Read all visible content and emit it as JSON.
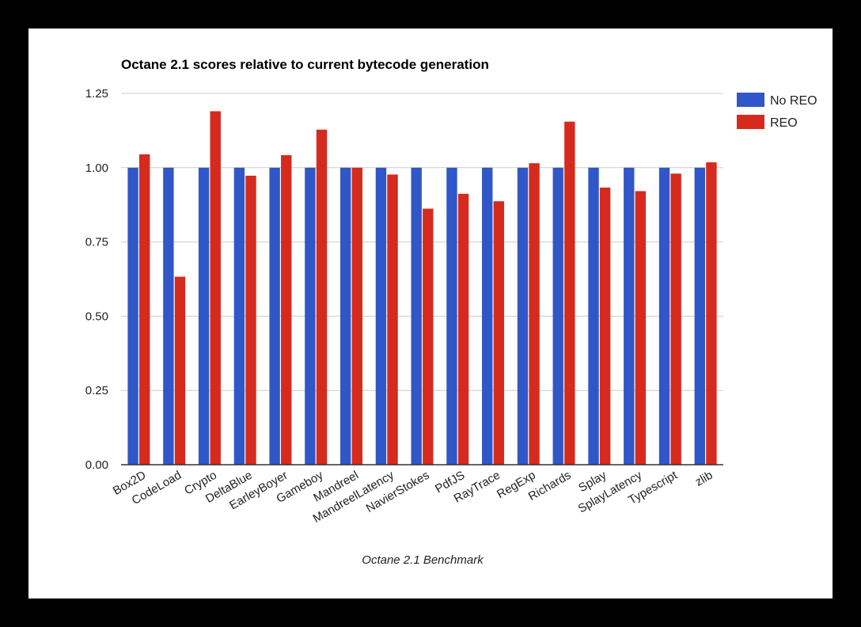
{
  "chart_data": {
    "type": "bar",
    "title": "Octane 2.1 scores relative to current bytecode generation",
    "xlabel": "Octane 2.1 Benchmark",
    "ylabel": "",
    "ylim": [
      0,
      1.25
    ],
    "yticks": [
      "0.00",
      "0.25",
      "0.50",
      "0.75",
      "1.00",
      "1.25"
    ],
    "ytick_values": [
      0,
      0.25,
      0.5,
      0.75,
      1.0,
      1.25
    ],
    "grid": true,
    "legend_position": "right",
    "categories": [
      "Box2D",
      "CodeLoad",
      "Crypto",
      "DeltaBlue",
      "EarleyBoyer",
      "Gameboy",
      "Mandreel",
      "MandreelLatency",
      "NavierStokes",
      "PdfJS",
      "RayTrace",
      "RegExp",
      "Richards",
      "Splay",
      "SplayLatency",
      "Typescript",
      "zlib"
    ],
    "series": [
      {
        "name": "No REO",
        "color": "#3057c8",
        "values": [
          1.0,
          1.0,
          1.0,
          1.0,
          1.0,
          1.0,
          1.0,
          1.0,
          1.0,
          1.0,
          1.0,
          1.0,
          1.0,
          1.0,
          1.0,
          1.0,
          1.0
        ]
      },
      {
        "name": "REO",
        "color": "#d62a1e",
        "values": [
          1.045,
          0.633,
          1.19,
          0.973,
          1.042,
          1.128,
          1.0,
          0.977,
          0.862,
          0.912,
          0.887,
          1.015,
          1.155,
          0.933,
          0.921,
          0.98,
          1.018
        ]
      }
    ]
  }
}
